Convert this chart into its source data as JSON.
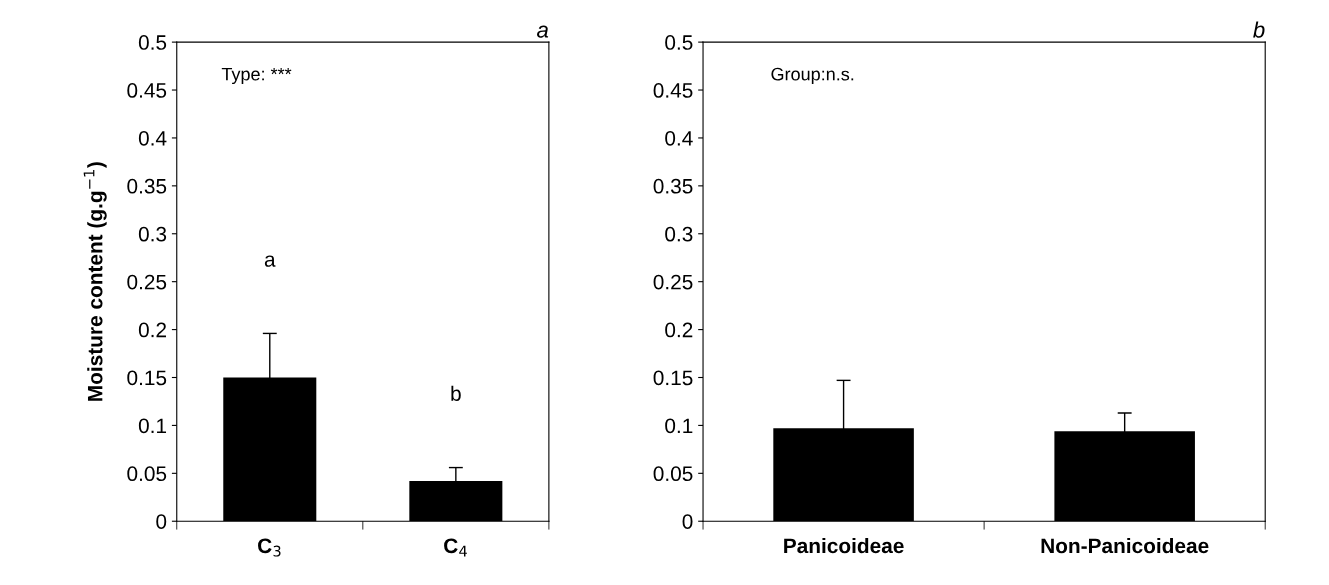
{
  "chart_data": [
    {
      "type": "bar",
      "title": "a",
      "ylabel": "Moisture content (g.g$^{−1}$)",
      "categories": [
        "C$_{3}$",
        "C$_{4}$"
      ],
      "values": [
        0.15,
        0.042
      ],
      "errors": [
        0.046,
        0.014
      ],
      "color": "#000000",
      "ylim": [
        0,
        0.5
      ],
      "yticks": [
        0,
        0.05,
        0.1,
        0.15,
        0.2,
        0.25,
        0.3,
        0.35,
        0.4,
        0.45,
        0.5
      ],
      "grid": false,
      "annotations": [
        "Type: ***",
        "a",
        "b"
      ]
    },
    {
      "type": "bar",
      "title": "b",
      "categories": [
        "Panicoideae",
        "Non-Panicoideae"
      ],
      "values": [
        0.097,
        0.094
      ],
      "errors": [
        0.05,
        0.019
      ],
      "color": "#000000",
      "ylim": [
        0,
        0.5
      ],
      "yticks": [
        0,
        0.05,
        0.1,
        0.15,
        0.2,
        0.25,
        0.3,
        0.35,
        0.4,
        0.45,
        0.5
      ],
      "grid": false,
      "annotations": [
        "Group:n.s."
      ]
    }
  ]
}
